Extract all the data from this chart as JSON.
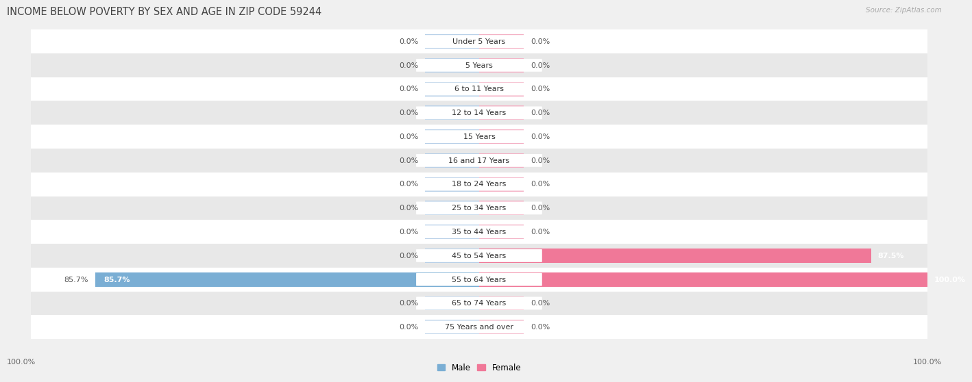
{
  "title": "INCOME BELOW POVERTY BY SEX AND AGE IN ZIP CODE 59244",
  "source": "Source: ZipAtlas.com",
  "categories": [
    "Under 5 Years",
    "5 Years",
    "6 to 11 Years",
    "12 to 14 Years",
    "15 Years",
    "16 and 17 Years",
    "18 to 24 Years",
    "25 to 34 Years",
    "35 to 44 Years",
    "45 to 54 Years",
    "55 to 64 Years",
    "65 to 74 Years",
    "75 Years and over"
  ],
  "male_values": [
    0.0,
    0.0,
    0.0,
    0.0,
    0.0,
    0.0,
    0.0,
    0.0,
    0.0,
    0.0,
    85.7,
    0.0,
    0.0
  ],
  "female_values": [
    0.0,
    0.0,
    0.0,
    0.0,
    0.0,
    0.0,
    0.0,
    0.0,
    0.0,
    87.5,
    100.0,
    0.0,
    0.0
  ],
  "male_color": "#7aaed4",
  "female_color": "#f07898",
  "male_stub_color": "#b8d0e8",
  "female_stub_color": "#f4b0c4",
  "male_label": "Male",
  "female_label": "Female",
  "max_value": 100.0,
  "bg_color": "#f0f0f0",
  "row_white_color": "#ffffff",
  "row_gray_color": "#e8e8e8",
  "title_fontsize": 10.5,
  "label_fontsize": 8.0,
  "cat_fontsize": 8.0,
  "tick_fontsize": 8.0,
  "source_fontsize": 7.5
}
